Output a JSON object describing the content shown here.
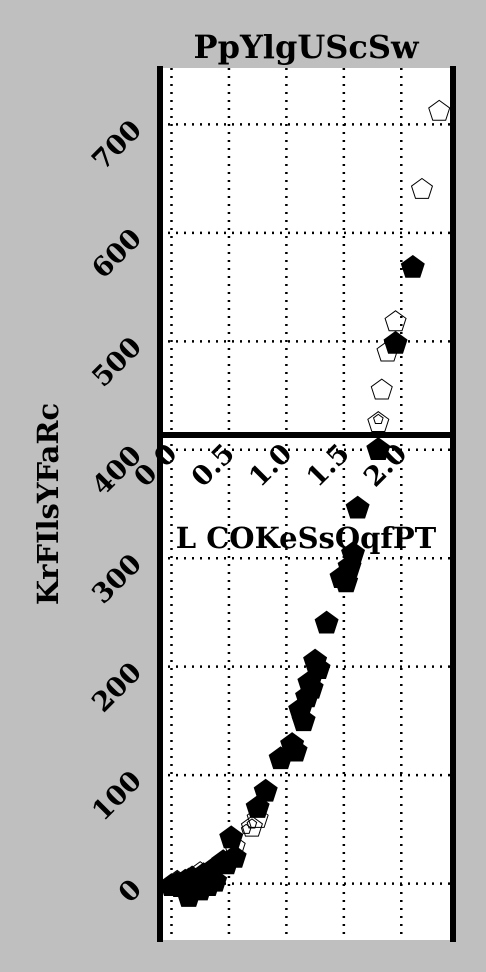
{
  "chart_data": {
    "type": "scatter",
    "title": "PpYlgUScSw",
    "xlabel": "L COKeSsOqfPT",
    "ylabel": "KrFIlsYFaRc",
    "xlim": [
      -0.1,
      2.45
    ],
    "ylim": [
      -52,
      752
    ],
    "x_ticks": [
      "0.0",
      "0.5",
      "1.0",
      "1.5",
      "2.0"
    ],
    "y_ticks": [
      "0",
      "100",
      "200",
      "300",
      "400",
      "500",
      "600",
      "700"
    ],
    "x_tick_values": [
      0.0,
      0.5,
      1.0,
      1.5,
      2.0
    ],
    "y_tick_values": [
      0,
      100,
      200,
      300,
      400,
      500,
      600,
      700
    ],
    "grid": true,
    "legend": "none",
    "colors": {
      "background": "#bfbfbf",
      "plot": "#ffffff",
      "ink": "#000000"
    },
    "series": [
      {
        "marker": "filled-pentagon",
        "points": [
          [
            0.0,
            -2
          ],
          [
            0.05,
            0
          ],
          [
            0.08,
            -3
          ],
          [
            0.12,
            2
          ],
          [
            0.15,
            -12
          ],
          [
            0.18,
            5
          ],
          [
            0.2,
            -1
          ],
          [
            0.22,
            3
          ],
          [
            0.25,
            -6
          ],
          [
            0.28,
            8
          ],
          [
            0.3,
            0
          ],
          [
            0.32,
            -2
          ],
          [
            0.35,
            12
          ],
          [
            0.38,
            2
          ],
          [
            0.45,
            20
          ],
          [
            0.48,
            18
          ],
          [
            0.52,
            42
          ],
          [
            0.55,
            24
          ],
          [
            0.75,
            70
          ],
          [
            0.82,
            85
          ],
          [
            0.95,
            115
          ],
          [
            1.05,
            128
          ],
          [
            1.08,
            122
          ],
          [
            1.12,
            160
          ],
          [
            1.15,
            150
          ],
          [
            1.18,
            172
          ],
          [
            1.2,
            185
          ],
          [
            1.22,
            180
          ],
          [
            1.25,
            205
          ],
          [
            1.28,
            198
          ],
          [
            1.35,
            240
          ],
          [
            1.48,
            282
          ],
          [
            1.52,
            278
          ],
          [
            1.55,
            292
          ],
          [
            1.58,
            304
          ],
          [
            1.62,
            346
          ],
          [
            1.8,
            400
          ],
          [
            1.95,
            498
          ],
          [
            2.1,
            568
          ]
        ]
      },
      {
        "marker": "hollow-pentagon",
        "points": [
          [
            0.05,
            2
          ],
          [
            0.15,
            4
          ],
          [
            0.25,
            10
          ],
          [
            0.55,
            34
          ],
          [
            0.7,
            52
          ],
          [
            0.75,
            60
          ],
          [
            1.8,
            425
          ],
          [
            1.83,
            455
          ],
          [
            1.88,
            490
          ],
          [
            1.95,
            518
          ],
          [
            2.18,
            640
          ],
          [
            2.33,
            712
          ]
        ]
      },
      {
        "marker": "hollow-pentagon-small",
        "points": [
          [
            0.28,
            5
          ],
          [
            0.65,
            50
          ],
          [
            0.7,
            55
          ],
          [
            1.8,
            428
          ]
        ]
      }
    ]
  }
}
